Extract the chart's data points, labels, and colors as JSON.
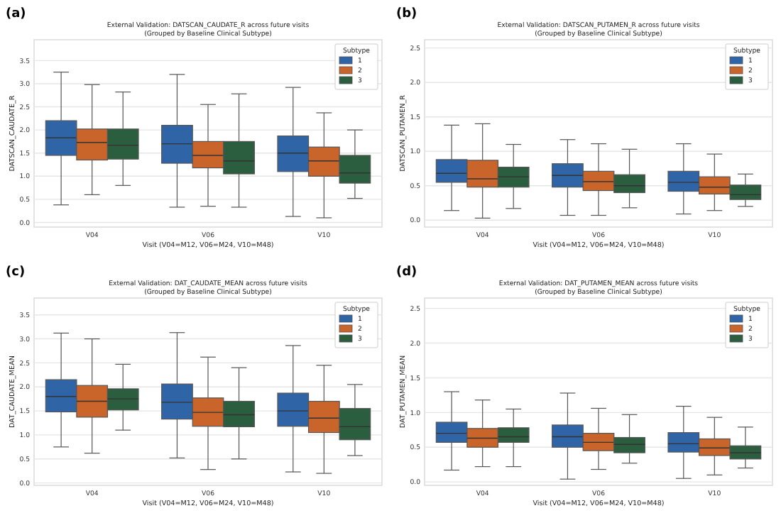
{
  "chart_data": [
    {
      "type": "box",
      "annotations": [
        "(a)"
      ],
      "title": "External Validation: DATSCAN_CAUDATE_R across future visits",
      "subtitle": "(Grouped by Baseline Clinical Subtype)",
      "xlabel": "Visit (V04=M12, V06=M24, V10=M48)",
      "ylabel": "DATSCAN_CAUDATE_R",
      "categories": [
        "V04",
        "V06",
        "V10"
      ],
      "ylim": [
        -0.1,
        3.95
      ],
      "yticks": [
        {
          "value": 0,
          "label": "0.0"
        },
        {
          "value": 0.5,
          "label": "0.5"
        },
        {
          "value": 1,
          "label": "1.0"
        },
        {
          "value": 1.5,
          "label": "1.5"
        },
        {
          "value": 2,
          "label": "2.0"
        },
        {
          "value": 2.5,
          "label": "2.5"
        },
        {
          "value": 3,
          "label": "3.0"
        },
        {
          "value": 3.5,
          "label": "3.5"
        }
      ],
      "grid": "y",
      "legend": "top right",
      "legend_title": "Subtype",
      "series": [
        {
          "name": "1",
          "color": "#2f65a7",
          "boxes": [
            {
              "low": 0.38,
              "q1": 1.45,
              "median": 1.83,
              "q3": 2.2,
              "high": 3.25
            },
            {
              "low": 0.33,
              "q1": 1.28,
              "median": 1.7,
              "q3": 2.1,
              "high": 3.2
            },
            {
              "low": 0.13,
              "q1": 1.1,
              "median": 1.5,
              "q3": 1.87,
              "high": 2.92
            }
          ]
        },
        {
          "name": "2",
          "color": "#c9652a",
          "boxes": [
            {
              "low": 0.6,
              "q1": 1.35,
              "median": 1.73,
              "q3": 2.02,
              "high": 2.98
            },
            {
              "low": 0.35,
              "q1": 1.18,
              "median": 1.45,
              "q3": 1.75,
              "high": 2.55
            },
            {
              "low": 0.1,
              "q1": 1.0,
              "median": 1.33,
              "q3": 1.63,
              "high": 2.37
            }
          ]
        },
        {
          "name": "3",
          "color": "#2b5d3f",
          "boxes": [
            {
              "low": 0.8,
              "q1": 1.37,
              "median": 1.67,
              "q3": 2.02,
              "high": 2.82
            },
            {
              "low": 0.33,
              "q1": 1.05,
              "median": 1.33,
              "q3": 1.75,
              "high": 2.78
            },
            {
              "low": 0.52,
              "q1": 0.85,
              "median": 1.07,
              "q3": 1.45,
              "high": 2.0
            }
          ]
        }
      ]
    },
    {
      "type": "box",
      "annotations": [
        "(b)"
      ],
      "title": "External Validation: DATSCAN_PUTAMEN_R across future visits",
      "subtitle": "(Grouped by Baseline Clinical Subtype)",
      "xlabel": "Visit (V04=M12, V06=M24, V10=M48)",
      "ylabel": "DATSCAN_PUTAMEN_R",
      "categories": [
        "V04",
        "V06",
        "V10"
      ],
      "ylim": [
        -0.1,
        2.62
      ],
      "yticks": [
        {
          "value": 0,
          "label": "0.0"
        },
        {
          "value": 0.5,
          "label": "0.5"
        },
        {
          "value": 1,
          "label": "1.0"
        },
        {
          "value": 1.5,
          "label": "1.5"
        },
        {
          "value": 2,
          "label": "2.0"
        },
        {
          "value": 2.5,
          "label": "2.5"
        }
      ],
      "grid": "y",
      "legend": "top right",
      "legend_title": "Subtype",
      "series": [
        {
          "name": "1",
          "color": "#2f65a7",
          "boxes": [
            {
              "low": 0.14,
              "q1": 0.55,
              "median": 0.68,
              "q3": 0.88,
              "high": 1.38
            },
            {
              "low": 0.07,
              "q1": 0.48,
              "median": 0.65,
              "q3": 0.82,
              "high": 1.17
            },
            {
              "low": 0.09,
              "q1": 0.42,
              "median": 0.55,
              "q3": 0.71,
              "high": 1.11
            }
          ]
        },
        {
          "name": "2",
          "color": "#c9652a",
          "boxes": [
            {
              "low": 0.03,
              "q1": 0.48,
              "median": 0.6,
              "q3": 0.87,
              "high": 1.4
            },
            {
              "low": 0.07,
              "q1": 0.43,
              "median": 0.56,
              "q3": 0.71,
              "high": 1.11
            },
            {
              "low": 0.14,
              "q1": 0.38,
              "median": 0.48,
              "q3": 0.63,
              "high": 0.96
            }
          ]
        },
        {
          "name": "3",
          "color": "#2b5d3f",
          "boxes": [
            {
              "low": 0.17,
              "q1": 0.48,
              "median": 0.63,
              "q3": 0.77,
              "high": 1.1
            },
            {
              "low": 0.18,
              "q1": 0.4,
              "median": 0.5,
              "q3": 0.66,
              "high": 1.03
            },
            {
              "low": 0.2,
              "q1": 0.3,
              "median": 0.37,
              "q3": 0.51,
              "high": 0.67
            }
          ]
        }
      ]
    },
    {
      "type": "box",
      "annotations": [
        "(c)"
      ],
      "title": "External Validation: DAT_CAUDATE_MEAN across future visits",
      "subtitle": "(Grouped by Baseline Clinical Subtype)",
      "xlabel": "Visit (V04=M12, V06=M24, V10=M48)",
      "ylabel": "DAT_CAUDATE_MEAN",
      "categories": [
        "V04",
        "V06",
        "V10"
      ],
      "ylim": [
        -0.05,
        3.85
      ],
      "yticks": [
        {
          "value": 0,
          "label": "0.0"
        },
        {
          "value": 0.5,
          "label": "0.5"
        },
        {
          "value": 1,
          "label": "1.0"
        },
        {
          "value": 1.5,
          "label": "1.5"
        },
        {
          "value": 2,
          "label": "2.0"
        },
        {
          "value": 2.5,
          "label": "2.5"
        },
        {
          "value": 3,
          "label": "3.0"
        },
        {
          "value": 3.5,
          "label": "3.5"
        }
      ],
      "grid": "y",
      "legend": "top right",
      "legend_title": "Subtype",
      "series": [
        {
          "name": "1",
          "color": "#2f65a7",
          "boxes": [
            {
              "low": 0.75,
              "q1": 1.48,
              "median": 1.8,
              "q3": 2.15,
              "high": 3.12
            },
            {
              "low": 0.52,
              "q1": 1.33,
              "median": 1.68,
              "q3": 2.06,
              "high": 3.13
            },
            {
              "low": 0.23,
              "q1": 1.18,
              "median": 1.5,
              "q3": 1.87,
              "high": 2.86
            }
          ]
        },
        {
          "name": "2",
          "color": "#c9652a",
          "boxes": [
            {
              "low": 0.62,
              "q1": 1.37,
              "median": 1.7,
              "q3": 2.03,
              "high": 3.0
            },
            {
              "low": 0.28,
              "q1": 1.18,
              "median": 1.47,
              "q3": 1.77,
              "high": 2.62
            },
            {
              "low": 0.2,
              "q1": 1.05,
              "median": 1.35,
              "q3": 1.7,
              "high": 2.45
            }
          ]
        },
        {
          "name": "3",
          "color": "#2b5d3f",
          "boxes": [
            {
              "low": 1.1,
              "q1": 1.52,
              "median": 1.75,
              "q3": 1.96,
              "high": 2.47
            },
            {
              "low": 0.5,
              "q1": 1.17,
              "median": 1.42,
              "q3": 1.7,
              "high": 2.4
            },
            {
              "low": 0.57,
              "q1": 0.9,
              "median": 1.17,
              "q3": 1.55,
              "high": 2.05
            }
          ]
        }
      ]
    },
    {
      "type": "box",
      "annotations": [
        "(d)"
      ],
      "title": "External Validation: DAT_PUTAMEN_MEAN across future visits",
      "subtitle": "(Grouped by Baseline Clinical Subtype)",
      "xlabel": "Visit (V04=M12, V06=M24, V10=M48)",
      "ylabel": "DAT_PUTAMEN_MEAN",
      "categories": [
        "V04",
        "V06",
        "V10"
      ],
      "ylim": [
        -0.05,
        2.65
      ],
      "yticks": [
        {
          "value": 0,
          "label": "0.0"
        },
        {
          "value": 0.5,
          "label": "0.5"
        },
        {
          "value": 1,
          "label": "1.0"
        },
        {
          "value": 1.5,
          "label": "1.5"
        },
        {
          "value": 2,
          "label": "2.0"
        },
        {
          "value": 2.5,
          "label": "2.5"
        }
      ],
      "grid": "y",
      "legend": "top right",
      "legend_title": "Subtype",
      "series": [
        {
          "name": "1",
          "color": "#2f65a7",
          "boxes": [
            {
              "low": 0.17,
              "q1": 0.57,
              "median": 0.7,
              "q3": 0.86,
              "high": 1.3
            },
            {
              "low": 0.04,
              "q1": 0.5,
              "median": 0.65,
              "q3": 0.82,
              "high": 1.28
            },
            {
              "low": 0.05,
              "q1": 0.43,
              "median": 0.55,
              "q3": 0.71,
              "high": 1.09
            }
          ]
        },
        {
          "name": "2",
          "color": "#c9652a",
          "boxes": [
            {
              "low": 0.22,
              "q1": 0.5,
              "median": 0.63,
              "q3": 0.77,
              "high": 1.18
            },
            {
              "low": 0.18,
              "q1": 0.45,
              "median": 0.57,
              "q3": 0.7,
              "high": 1.06
            },
            {
              "low": 0.1,
              "q1": 0.38,
              "median": 0.49,
              "q3": 0.62,
              "high": 0.93
            }
          ]
        },
        {
          "name": "3",
          "color": "#2b5d3f",
          "boxes": [
            {
              "low": 0.22,
              "q1": 0.57,
              "median": 0.65,
              "q3": 0.78,
              "high": 1.05
            },
            {
              "low": 0.27,
              "q1": 0.42,
              "median": 0.54,
              "q3": 0.64,
              "high": 0.97
            },
            {
              "low": 0.2,
              "q1": 0.33,
              "median": 0.42,
              "q3": 0.52,
              "high": 0.79
            }
          ]
        }
      ]
    }
  ]
}
